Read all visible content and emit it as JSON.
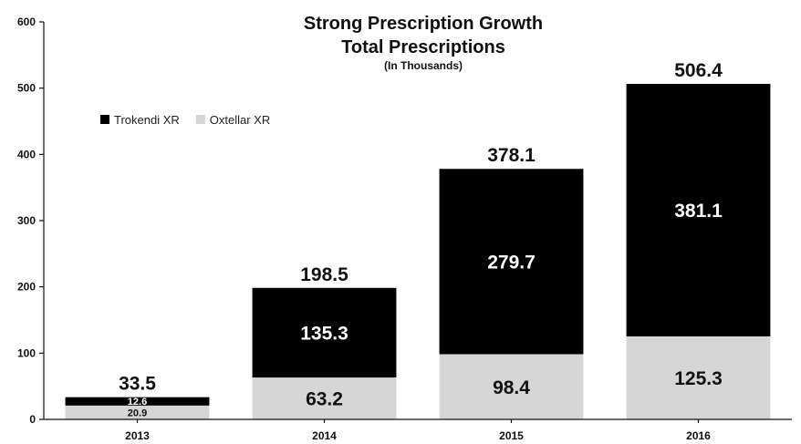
{
  "chart_data": {
    "type": "bar",
    "stacked": true,
    "title": "Strong Prescription Growth",
    "subtitle": "Total Prescriptions",
    "subtitle2": "(In Thousands)",
    "categories": [
      "2013",
      "2014",
      "2015",
      "2016"
    ],
    "series": [
      {
        "name": "Oxtellar XR",
        "color": "#d6d6d6",
        "label_color": "#111111",
        "values": [
          20.9,
          63.2,
          98.4,
          125.3
        ]
      },
      {
        "name": "Trokendi XR",
        "color": "#000000",
        "label_color": "#ffffff",
        "values": [
          12.6,
          135.3,
          279.7,
          381.1
        ]
      }
    ],
    "totals": [
      33.5,
      198.5,
      378.1,
      506.4
    ],
    "value_labels": {
      "Oxtellar XR": [
        "20.9",
        "63.2",
        "98.4",
        "125.3"
      ],
      "Trokendi XR": [
        "12.6",
        "135.3",
        "279.7",
        "381.1"
      ],
      "totals": [
        "33.5",
        "198.5",
        "378.1",
        "506.4"
      ]
    },
    "legend_order": [
      "Trokendi XR",
      "Oxtellar XR"
    ],
    "legend_position": "top-left",
    "ylim": [
      0,
      600
    ],
    "yticks": [
      0,
      100,
      200,
      300,
      400,
      500,
      600
    ],
    "grid": false
  }
}
